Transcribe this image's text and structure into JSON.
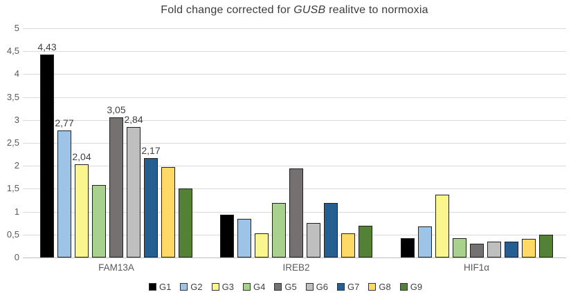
{
  "title": {
    "prefix": "Fold change corrected for ",
    "gene": "GUSB",
    "suffix": " realitve to normoxia",
    "full": "Fold change corrected for GUSB realitve to normoxia"
  },
  "colors": {
    "gridline": "#d9d9d9",
    "axis_line": "#bfbfbf",
    "bar_border": "#1f1f1f",
    "tick_text": "#595959",
    "label_text": "#404040"
  },
  "chart_data": {
    "type": "bar",
    "title": "Fold change corrected for GUSB realitve to normoxia",
    "categories": [
      "FAM13A",
      "IREB2",
      "HIF1α"
    ],
    "series": [
      {
        "name": "G1",
        "color": "#000000",
        "values": [
          4.43,
          0.93,
          0.42
        ],
        "labels": [
          "4,43",
          null,
          null
        ]
      },
      {
        "name": "G2",
        "color": "#9dc3e6",
        "values": [
          2.77,
          0.84,
          0.68
        ],
        "labels": [
          "2,77",
          null,
          null
        ]
      },
      {
        "name": "G3",
        "color": "#faf58c",
        "values": [
          2.04,
          0.52,
          1.37
        ],
        "labels": [
          "2,04",
          null,
          null
        ]
      },
      {
        "name": "G4",
        "color": "#a9d18e",
        "values": [
          1.58,
          1.19,
          0.42
        ],
        "labels": [
          null,
          null,
          null
        ]
      },
      {
        "name": "G5",
        "color": "#767171",
        "values": [
          3.05,
          1.95,
          0.3
        ],
        "labels": [
          "3,05",
          null,
          null
        ]
      },
      {
        "name": "G6",
        "color": "#bfbfbf",
        "values": [
          2.84,
          0.76,
          0.34
        ],
        "labels": [
          "2,84",
          null,
          null
        ]
      },
      {
        "name": "G7",
        "color": "#255e91",
        "values": [
          2.17,
          1.19,
          0.34
        ],
        "labels": [
          "2,17",
          null,
          null
        ]
      },
      {
        "name": "G8",
        "color": "#ffd966",
        "values": [
          1.98,
          0.52,
          0.4
        ],
        "labels": [
          null,
          null,
          null
        ]
      },
      {
        "name": "G9",
        "color": "#538135",
        "values": [
          1.51,
          0.69,
          0.5
        ],
        "labels": [
          null,
          null,
          null
        ]
      }
    ],
    "y_axis": {
      "min": 0,
      "max": 5,
      "step": 0.5,
      "tick_labels": [
        "0",
        "0,5",
        "1",
        "1,5",
        "2",
        "2,5",
        "3",
        "3,5",
        "4",
        "4,5",
        "5"
      ]
    },
    "legend": {
      "position": "bottom",
      "entries": [
        "G1",
        "G2",
        "G3",
        "G4",
        "G5",
        "G6",
        "G7",
        "G8",
        "G9"
      ]
    },
    "grid": true,
    "ylim": [
      0,
      5
    ]
  }
}
